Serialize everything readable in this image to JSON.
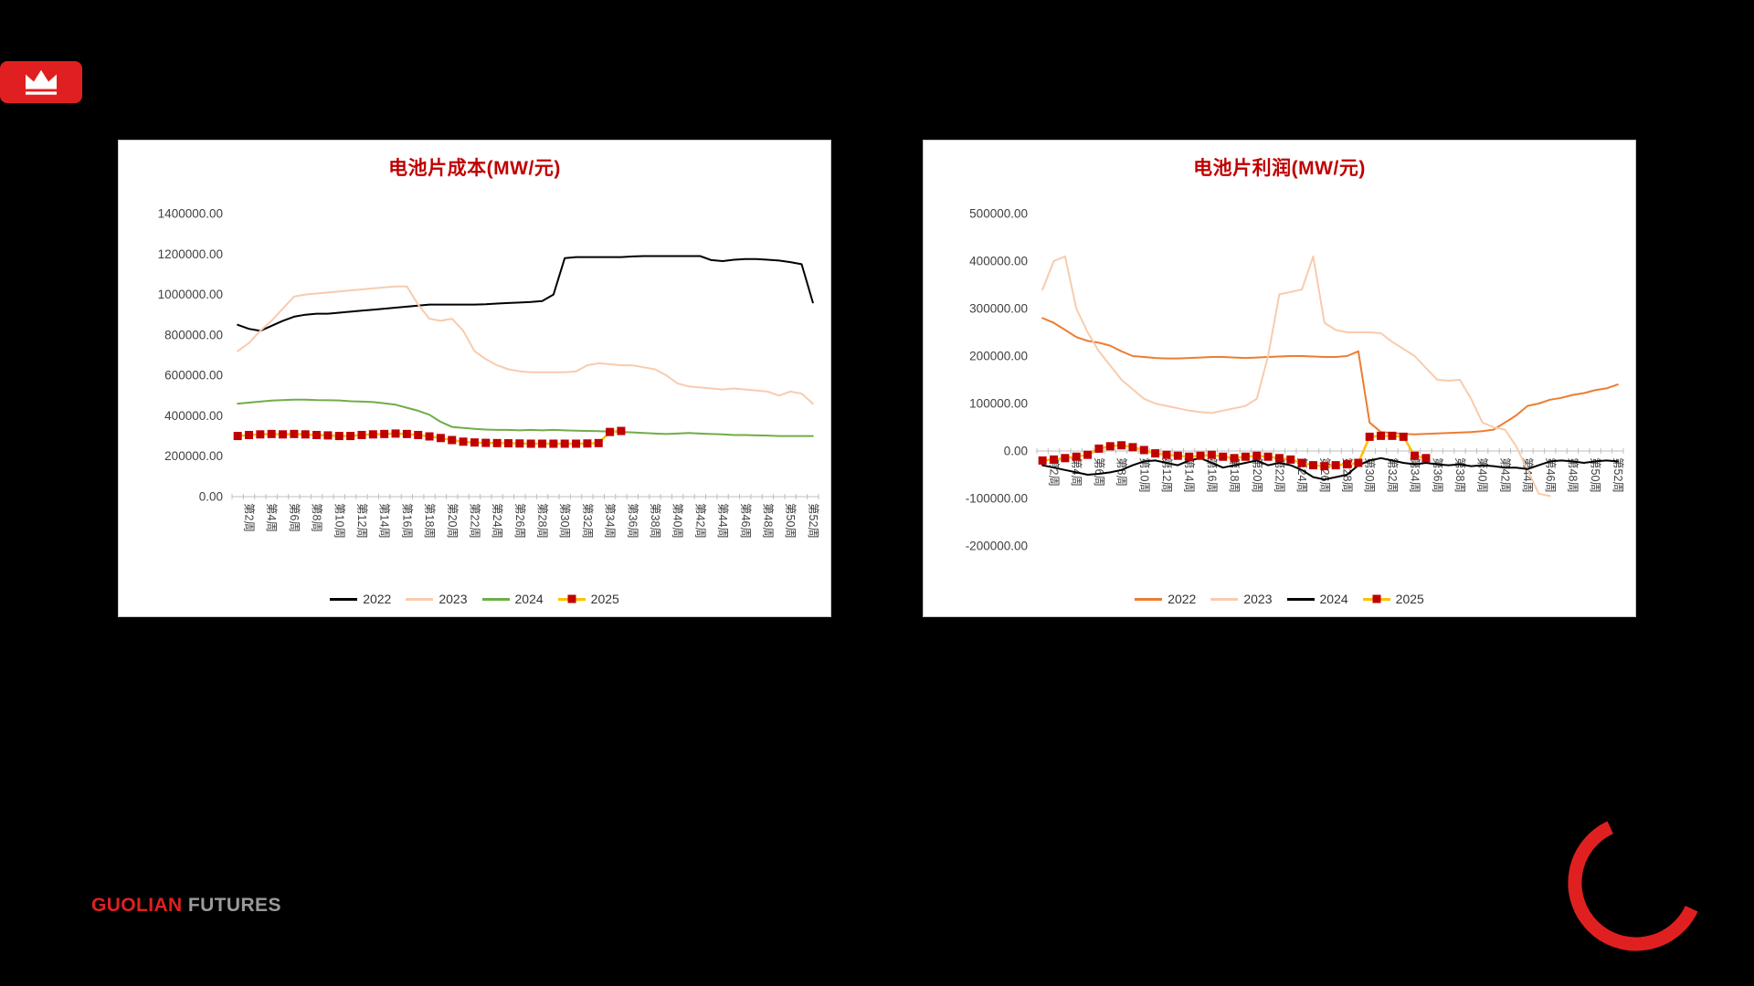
{
  "logo": {
    "icon": "crown-icon",
    "background": "#e02020"
  },
  "footer": {
    "brand_primary": "GUOLIAN",
    "brand_secondary": "FUTURES",
    "primary_color": "#e02020",
    "secondary_color": "#9a9a9a"
  },
  "decoration": {
    "arc_color": "#e02020"
  },
  "chart_data": [
    {
      "type": "line",
      "title": "电池片成本(MW/元)",
      "title_color": "#c00000",
      "ylim": [
        0,
        1400000
      ],
      "ytick_step": 200000,
      "grid": false,
      "legend_position": "bottom",
      "x_weeks": 52,
      "x_tick_labels": [
        "第2周",
        "第4周",
        "第6周",
        "第8周",
        "第10周",
        "第12周",
        "第14周",
        "第16周",
        "第18周",
        "第20周",
        "第22周",
        "第24周",
        "第26周",
        "第28周",
        "第30周",
        "第32周",
        "第34周",
        "第36周",
        "第38周",
        "第40周",
        "第42周",
        "第44周",
        "第46周",
        "第48周",
        "第50周",
        "第52周"
      ],
      "series": [
        {
          "name": "2022",
          "color": "#000000",
          "values": [
            850000,
            830000,
            820000,
            845000,
            870000,
            890000,
            900000,
            905000,
            905000,
            910000,
            915000,
            920000,
            925000,
            930000,
            935000,
            940000,
            945000,
            950000,
            950000,
            950000,
            950000,
            950000,
            952000,
            955000,
            958000,
            960000,
            963000,
            968000,
            1000000,
            1180000,
            1185000,
            1185000,
            1185000,
            1185000,
            1185000,
            1188000,
            1190000,
            1190000,
            1190000,
            1190000,
            1190000,
            1190000,
            1170000,
            1165000,
            1172000,
            1175000,
            1175000,
            1172000,
            1168000,
            1160000,
            1150000,
            960000
          ]
        },
        {
          "name": "2023",
          "color": "#f8cbad",
          "values": [
            720000,
            760000,
            820000,
            870000,
            930000,
            990000,
            1000000,
            1005000,
            1010000,
            1015000,
            1020000,
            1025000,
            1030000,
            1035000,
            1040000,
            1040000,
            950000,
            880000,
            870000,
            880000,
            820000,
            720000,
            680000,
            650000,
            630000,
            620000,
            615000,
            615000,
            615000,
            615000,
            620000,
            650000,
            660000,
            655000,
            650000,
            650000,
            640000,
            630000,
            600000,
            560000,
            545000,
            540000,
            535000,
            530000,
            535000,
            530000,
            525000,
            520000,
            500000,
            520000,
            510000,
            460000
          ]
        },
        {
          "name": "2024",
          "color": "#70ad47",
          "values": [
            460000,
            465000,
            470000,
            475000,
            478000,
            480000,
            480000,
            478000,
            477000,
            476000,
            472000,
            470000,
            468000,
            462000,
            455000,
            440000,
            425000,
            405000,
            370000,
            345000,
            340000,
            335000,
            332000,
            330000,
            330000,
            328000,
            330000,
            328000,
            330000,
            328000,
            326000,
            325000,
            324000,
            322000,
            320000,
            318000,
            315000,
            312000,
            310000,
            312000,
            315000,
            312000,
            310000,
            308000,
            305000,
            305000,
            303000,
            302000,
            300000,
            300000,
            300000,
            300000
          ]
        },
        {
          "name": "2025",
          "color": "#c00000",
          "line_color": "#ffc000",
          "marker": "square",
          "values": [
            300000,
            305000,
            308000,
            310000,
            308000,
            310000,
            308000,
            305000,
            303000,
            300000,
            300000,
            305000,
            308000,
            310000,
            312000,
            310000,
            305000,
            298000,
            290000,
            280000,
            272000,
            268000,
            266000,
            265000,
            264000,
            263000,
            262000,
            262000,
            262000,
            262000,
            262000,
            263000,
            265000,
            320000,
            325000,
            null,
            null,
            null,
            null,
            null,
            null,
            null,
            null,
            null,
            null,
            null,
            null,
            null,
            null,
            null,
            null,
            null
          ]
        }
      ]
    },
    {
      "type": "line",
      "title": "电池片利润(MW/元)",
      "title_color": "#c00000",
      "ylim": [
        -200000,
        500000
      ],
      "ytick_step": 100000,
      "grid": false,
      "legend_position": "bottom",
      "x_weeks": 52,
      "x_tick_labels": [
        "第2周",
        "第4周",
        "第6周",
        "第8周",
        "第10周",
        "第12周",
        "第14周",
        "第16周",
        "第18周",
        "第20周",
        "第22周",
        "第24周",
        "第26周",
        "第28周",
        "第30周",
        "第32周",
        "第34周",
        "第36周",
        "第38周",
        "第40周",
        "第42周",
        "第44周",
        "第46周",
        "第48周",
        "第50周",
        "第52周"
      ],
      "series": [
        {
          "name": "2022",
          "color": "#ed7d31",
          "values": [
            280000,
            270000,
            255000,
            240000,
            232000,
            228000,
            222000,
            210000,
            200000,
            198000,
            196000,
            195000,
            195000,
            196000,
            197000,
            198000,
            198000,
            197000,
            196000,
            197000,
            198000,
            199000,
            200000,
            200000,
            199000,
            198000,
            198000,
            200000,
            210000,
            60000,
            40000,
            38000,
            36000,
            35000,
            36000,
            37000,
            38000,
            39000,
            40000,
            42000,
            45000,
            60000,
            75000,
            95000,
            100000,
            108000,
            112000,
            118000,
            122000,
            128000,
            132000,
            140000
          ]
        },
        {
          "name": "2023",
          "color": "#f8cbad",
          "values": [
            340000,
            400000,
            410000,
            300000,
            250000,
            210000,
            180000,
            150000,
            130000,
            110000,
            100000,
            95000,
            90000,
            85000,
            82000,
            80000,
            85000,
            90000,
            95000,
            110000,
            200000,
            330000,
            335000,
            340000,
            410000,
            270000,
            255000,
            250000,
            250000,
            250000,
            248000,
            230000,
            215000,
            200000,
            175000,
            150000,
            148000,
            150000,
            110000,
            60000,
            50000,
            45000,
            10000,
            -40000,
            -90000,
            -95000,
            null,
            null,
            null,
            null,
            null,
            null
          ]
        },
        {
          "name": "2024",
          "color": "#000000",
          "values": [
            -30000,
            -35000,
            -40000,
            -45000,
            -50000,
            -48000,
            -45000,
            -40000,
            -30000,
            -22000,
            -20000,
            -25000,
            -30000,
            -20000,
            -15000,
            -25000,
            -35000,
            -30000,
            -25000,
            -20000,
            -30000,
            -25000,
            -30000,
            -40000,
            -55000,
            -60000,
            -55000,
            -50000,
            -30000,
            -20000,
            -15000,
            -20000,
            -25000,
            -28000,
            -25000,
            -28000,
            -30000,
            -28000,
            -32000,
            -30000,
            -32000,
            -35000,
            -35000,
            -38000,
            -30000,
            -22000,
            -20000,
            -22000,
            -25000,
            -22000,
            -20000,
            -22000
          ]
        },
        {
          "name": "2025",
          "color": "#c00000",
          "line_color": "#ffc000",
          "marker": "square",
          "values": [
            -20000,
            -18000,
            -15000,
            -12000,
            -8000,
            5000,
            10000,
            12000,
            8000,
            2000,
            -5000,
            -8000,
            -10000,
            -12000,
            -10000,
            -8000,
            -12000,
            -15000,
            -12000,
            -10000,
            -12000,
            -15000,
            -18000,
            -25000,
            -30000,
            -32000,
            -30000,
            -28000,
            -25000,
            30000,
            32000,
            32000,
            30000,
            -10000,
            -15000,
            null,
            null,
            null,
            null,
            null,
            null,
            null,
            null,
            null,
            null,
            null,
            null,
            null,
            null,
            null,
            null,
            null
          ]
        }
      ]
    }
  ]
}
